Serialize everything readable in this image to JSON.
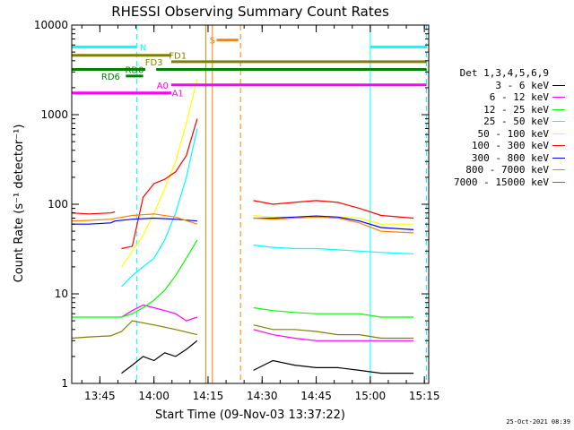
{
  "chart_data": {
    "type": "line",
    "title": "RHESSI Observing Summary Count Rates",
    "xlabel": "Start Time (09-Nov-03 13:37:22)",
    "ylabel": "Count Rate (s⁻¹ detector⁻¹)",
    "yscale": "log",
    "ylim": [
      1,
      10000
    ],
    "xlim_minutes": [
      13.62,
      15.27
    ],
    "x_tick_labels": [
      "13:45",
      "14:00",
      "14:15",
      "14:30",
      "14:45",
      "15:00",
      "15:15"
    ],
    "x_tick_hours": [
      13.75,
      14.0,
      14.25,
      14.5,
      14.75,
      15.0,
      15.25
    ],
    "y_tick_labels": [
      "1",
      "10",
      "100",
      "1000",
      "10000"
    ],
    "y_tick_values": [
      1,
      10,
      100,
      1000,
      10000
    ],
    "legend_header": "Det 1,3,4,5,6,9",
    "legend_position": "right",
    "series": [
      {
        "name": "3 - 6 keV",
        "color": "#000000",
        "segments": [
          {
            "x": [
              13.85,
              13.9,
              13.95,
              14.0,
              14.05,
              14.1,
              14.15,
              14.2
            ],
            "y": [
              1.3,
              1.6,
              2.0,
              1.8,
              2.2,
              2.0,
              2.4,
              3.0
            ]
          },
          {
            "x": [
              14.46,
              14.55,
              14.65,
              14.75,
              14.85,
              14.95,
              15.05,
              15.2
            ],
            "y": [
              1.4,
              1.8,
              1.6,
              1.5,
              1.5,
              1.4,
              1.3,
              1.3
            ]
          }
        ]
      },
      {
        "name": "6 - 12 keV",
        "color": "#ff00ff",
        "segments": [
          {
            "x": [
              13.85,
              13.9,
              13.95,
              14.0,
              14.05,
              14.1,
              14.15,
              14.2
            ],
            "y": [
              5.5,
              6.5,
              7.5,
              7.0,
              6.5,
              6.0,
              5.0,
              5.5
            ]
          },
          {
            "x": [
              14.46,
              14.55,
              14.65,
              14.75,
              14.85,
              14.95,
              15.05,
              15.2
            ],
            "y": [
              4.0,
              3.5,
              3.2,
              3.0,
              3.0,
              3.0,
              3.0,
              3.0
            ]
          }
        ]
      },
      {
        "name": "12 - 25 keV",
        "color": "#00ff00",
        "segments": [
          {
            "x": [
              13.62,
              13.7,
              13.8,
              13.85,
              13.9,
              13.95,
              14.0,
              14.05,
              14.1,
              14.15,
              14.2
            ],
            "y": [
              5.5,
              5.5,
              5.5,
              5.5,
              6.0,
              7.0,
              8.5,
              11,
              16,
              25,
              40
            ]
          },
          {
            "x": [
              14.46,
              14.55,
              14.65,
              14.75,
              14.85,
              14.95,
              15.05,
              15.2
            ],
            "y": [
              7.0,
              6.5,
              6.2,
              6.0,
              6.0,
              6.0,
              5.5,
              5.5
            ]
          }
        ]
      },
      {
        "name": "25 - 50 keV",
        "color": "#00ffff",
        "segments": [
          {
            "x": [
              13.85,
              13.9,
              13.95,
              14.0,
              14.05,
              14.1,
              14.15,
              14.2
            ],
            "y": [
              12,
              16,
              20,
              25,
              40,
              80,
              200,
              700
            ]
          },
          {
            "x": [
              14.46,
              14.55,
              14.65,
              14.75,
              14.85,
              14.95,
              15.05,
              15.2
            ],
            "y": [
              35,
              33,
              32,
              32,
              31,
              30,
              29,
              28
            ]
          }
        ]
      },
      {
        "name": "50 - 100 keV",
        "color": "#ffff00",
        "segments": [
          {
            "x": [
              13.85,
              13.9,
              13.95,
              14.0,
              14.05,
              14.1,
              14.15,
              14.2
            ],
            "y": [
              20,
              30,
              45,
              80,
              150,
              300,
              800,
              2500
            ]
          },
          {
            "x": [
              14.46,
              14.55,
              14.65,
              14.75,
              14.85,
              14.95,
              15.05,
              15.2
            ],
            "y": [
              75,
              72,
              72,
              73,
              72,
              70,
              60,
              60
            ]
          }
        ]
      },
      {
        "name": "100 - 300 keV",
        "color": "#ff0000",
        "segments": [
          {
            "x": [
              13.62,
              13.7,
              13.8,
              13.82
            ],
            "y": [
              80,
              78,
              80,
              82
            ]
          },
          {
            "x": [
              13.85,
              13.9,
              13.95,
              14.0,
              14.05,
              14.1,
              14.15,
              14.2
            ],
            "y": [
              32,
              34,
              120,
              170,
              190,
              230,
              350,
              900
            ]
          },
          {
            "x": [
              14.46,
              14.55,
              14.65,
              14.75,
              14.85,
              14.95,
              15.05,
              15.2
            ],
            "y": [
              110,
              100,
              105,
              110,
              105,
              90,
              75,
              70
            ]
          }
        ]
      },
      {
        "name": "300 - 800 keV",
        "color": "#0000ff",
        "segments": [
          {
            "x": [
              13.62,
              13.7,
              13.8,
              13.82,
              13.9,
              14.0,
              14.1,
              14.2
            ],
            "y": [
              60,
              60,
              62,
              65,
              68,
              70,
              68,
              65
            ]
          },
          {
            "x": [
              14.46,
              14.55,
              14.65,
              14.75,
              14.85,
              14.95,
              15.05,
              15.2
            ],
            "y": [
              70,
              70,
              72,
              74,
              72,
              65,
              55,
              52
            ]
          }
        ]
      },
      {
        "name": "800 - 7000 keV",
        "color": "#ff8000",
        "segments": [
          {
            "x": [
              13.62,
              13.7,
              13.8,
              13.9,
              14.0,
              14.1,
              14.2
            ],
            "y": [
              65,
              66,
              68,
              75,
              78,
              72,
              60
            ]
          },
          {
            "x": [
              14.46,
              14.55,
              14.65,
              14.75,
              14.85,
              14.95,
              15.05,
              15.2
            ],
            "y": [
              70,
              68,
              70,
              72,
              70,
              62,
              50,
              48
            ]
          }
        ]
      },
      {
        "name": "7000 - 15000 keV",
        "color": "#808000",
        "segments": [
          {
            "x": [
              13.62,
              13.7,
              13.8,
              13.85,
              13.9,
              14.0,
              14.1,
              14.2
            ],
            "y": [
              3.2,
              3.3,
              3.4,
              3.8,
              5.0,
              4.5,
              4.0,
              3.5
            ]
          },
          {
            "x": [
              14.46,
              14.55,
              14.65,
              14.75,
              14.85,
              14.95,
              15.05,
              15.2
            ],
            "y": [
              4.5,
              4.0,
              4.0,
              3.8,
              3.5,
              3.5,
              3.2,
              3.2
            ]
          }
        ]
      }
    ],
    "flag_bars": [
      {
        "label": "N",
        "color": "#00ffff",
        "segments": [
          [
            13.62,
            13.92
          ],
          [
            15.0,
            15.26
          ]
        ],
        "y": 5700,
        "label_x": 13.95
      },
      {
        "label": "S",
        "color": "#ff8000",
        "segments": [
          [
            14.29,
            14.39
          ]
        ],
        "y": 6800,
        "label_x": 14.27
      },
      {
        "label": "FD1",
        "color": "#808000",
        "segments": [
          [
            13.62,
            14.08
          ]
        ],
        "y": 4600,
        "label_x": 14.11
      },
      {
        "label": "FD3",
        "color": "#808000",
        "segments": [
          [
            14.08,
            15.26
          ]
        ],
        "y": 3900,
        "label_x": 14.0
      },
      {
        "label": "RD0",
        "color": "#008000",
        "segments": [
          [
            13.62,
            13.96
          ],
          [
            14.01,
            15.26
          ]
        ],
        "y": 3200,
        "label_x": 13.91
      },
      {
        "label": "RD6",
        "color": "#008000",
        "segments": [
          [
            13.87,
            13.95
          ]
        ],
        "y": 2700,
        "label_x": 13.8
      },
      {
        "label": "A0",
        "color": "#ff00ff",
        "segments": [
          [
            14.08,
            15.26
          ]
        ],
        "y": 2150,
        "label_x": 14.04
      },
      {
        "label": "A1",
        "color": "#ff00ff",
        "segments": [
          [
            13.62,
            14.08
          ]
        ],
        "y": 1750,
        "label_x": 14.11
      }
    ],
    "vertical_markers": [
      {
        "x": 13.92,
        "color": "#00ffff",
        "style": "dashed"
      },
      {
        "x": 15.26,
        "color": "#00ffff",
        "style": "dashed"
      },
      {
        "x": 15.0,
        "color": "#00ffff",
        "style": "solid"
      },
      {
        "x": 14.24,
        "color": "#ff8000",
        "style": "solid"
      },
      {
        "x": 14.27,
        "color": "#ff8000",
        "style": "solid"
      },
      {
        "x": 14.4,
        "color": "#ff8000",
        "style": "dashed"
      }
    ],
    "timestamp": "25-Oct-2021 08:39"
  }
}
